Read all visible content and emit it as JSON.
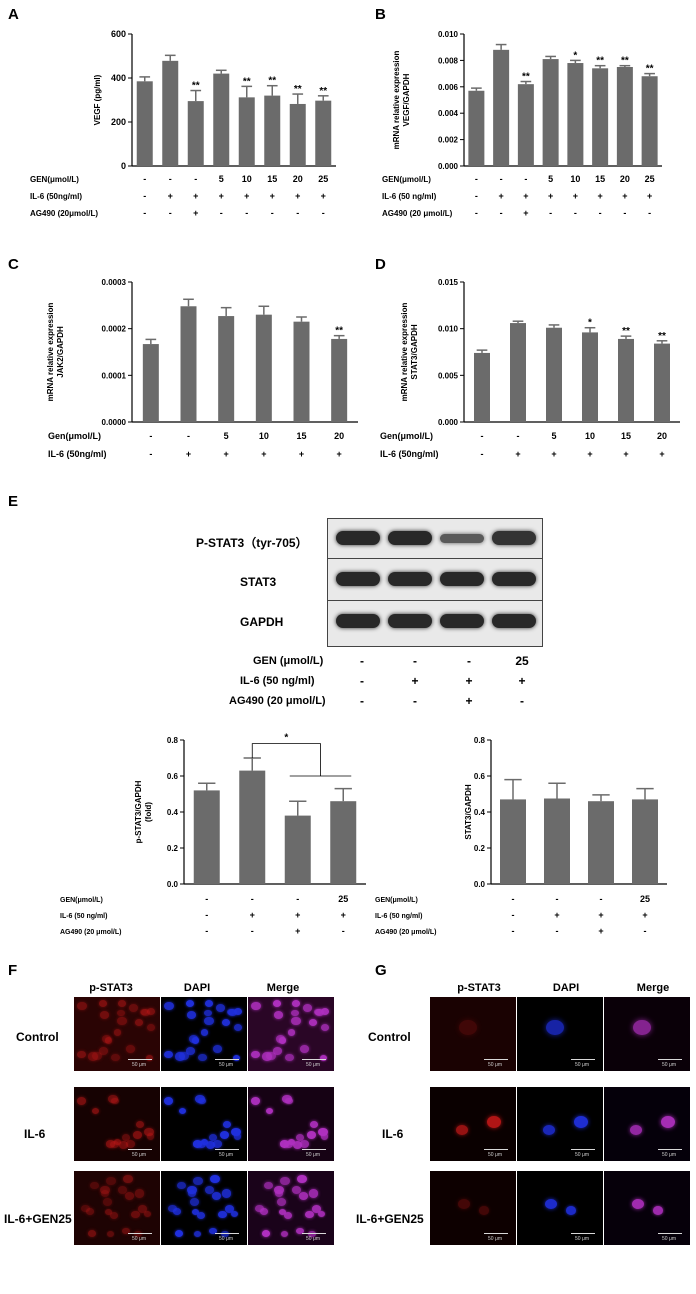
{
  "panel_letters": {
    "A": "A",
    "B": "B",
    "C": "C",
    "D": "D",
    "E": "E",
    "F": "F",
    "G": "G"
  },
  "chart_data": [
    {
      "id": "A",
      "type": "bar",
      "ylabel": "VEGF (pg/ml)",
      "ylim": [
        0,
        600
      ],
      "yticks": [
        0,
        200,
        400,
        600
      ],
      "values": [
        385,
        478,
        295,
        420,
        312,
        320,
        282,
        297
      ],
      "errors": [
        20,
        25,
        48,
        15,
        50,
        45,
        45,
        22
      ],
      "significance": [
        "",
        "",
        "**",
        "",
        "**",
        "**",
        "**",
        "**"
      ],
      "conditions": [
        {
          "label": "GEN(μmol/L)",
          "values": [
            "-",
            "-",
            "-",
            "5",
            "10",
            "15",
            "20",
            "25"
          ]
        },
        {
          "label": "IL-6 (50ng/ml)",
          "values": [
            "-",
            "+",
            "+",
            "+",
            "+",
            "+",
            "+",
            "+"
          ]
        },
        {
          "label": "AG490 (20μmol/L)",
          "values": [
            "-",
            "-",
            "+",
            "-",
            "-",
            "-",
            "-",
            "-"
          ]
        }
      ]
    },
    {
      "id": "B",
      "type": "bar",
      "ylabel": "mRNA relative expression\nVEGF/GAPDH",
      "ylim": [
        0,
        0.01
      ],
      "yticks": [
        0,
        0.002,
        0.004,
        0.006,
        0.008,
        0.01
      ],
      "ytick_labels": [
        "0.000",
        "0.002",
        "0.004",
        "0.006",
        "0.008",
        "0.010"
      ],
      "values": [
        0.0057,
        0.0088,
        0.0062,
        0.0081,
        0.0078,
        0.0074,
        0.0075,
        0.0068
      ],
      "errors": [
        0.0002,
        0.0004,
        0.0002,
        0.0002,
        0.0002,
        0.0002,
        0.0001,
        0.0002
      ],
      "significance": [
        "",
        "",
        "**",
        "",
        "*",
        "**",
        "**",
        "**"
      ],
      "conditions": [
        {
          "label": "GEN(μmol/L)",
          "values": [
            "-",
            "-",
            "-",
            "5",
            "10",
            "15",
            "20",
            "25"
          ]
        },
        {
          "label": "IL-6 (50 ng/ml)",
          "values": [
            "-",
            "+",
            "+",
            "+",
            "+",
            "+",
            "+",
            "+"
          ]
        },
        {
          "label": "AG490 (20 μmol/L)",
          "values": [
            "-",
            "-",
            "+",
            "-",
            "-",
            "-",
            "-",
            "-"
          ]
        }
      ]
    },
    {
      "id": "C",
      "type": "bar",
      "ylabel": "mRNA relative expression\nJAK2/GAPDH",
      "ylim": [
        0,
        0.0003
      ],
      "yticks": [
        0,
        0.0001,
        0.0002,
        0.0003
      ],
      "ytick_labels": [
        "0.0000",
        "0.0001",
        "0.0002",
        "0.0003"
      ],
      "values": [
        0.000167,
        0.000248,
        0.000227,
        0.00023,
        0.000215,
        0.000178
      ],
      "errors": [
        1e-05,
        1.5e-05,
        1.8e-05,
        1.8e-05,
        1e-05,
        7e-06
      ],
      "significance": [
        "",
        "",
        "",
        "",
        "",
        "**"
      ],
      "conditions": [
        {
          "label": "Gen(μmol/L)",
          "values": [
            "-",
            "-",
            "5",
            "10",
            "15",
            "20"
          ]
        },
        {
          "label": "IL-6 (50ng/ml)",
          "values": [
            "-",
            "+",
            "+",
            "+",
            "+",
            "+"
          ]
        }
      ]
    },
    {
      "id": "D",
      "type": "bar",
      "ylabel": "mRNA relative expression\nSTAT3/GAPDH",
      "ylim": [
        0,
        0.015
      ],
      "yticks": [
        0,
        0.005,
        0.01,
        0.015
      ],
      "ytick_labels": [
        "0.000",
        "0.005",
        "0.010",
        "0.015"
      ],
      "values": [
        0.0074,
        0.0106,
        0.0101,
        0.0096,
        0.0089,
        0.0084
      ],
      "errors": [
        0.0003,
        0.0002,
        0.0003,
        0.0005,
        0.0003,
        0.0003
      ],
      "significance": [
        "",
        "",
        "",
        "*",
        "**",
        "**"
      ],
      "conditions": [
        {
          "label": "Gen(μmol/L)",
          "values": [
            "-",
            "-",
            "5",
            "10",
            "15",
            "20"
          ]
        },
        {
          "label": "IL-6 (50ng/ml)",
          "values": [
            "-",
            "+",
            "+",
            "+",
            "+",
            "+"
          ]
        }
      ]
    },
    {
      "id": "E1",
      "type": "bar",
      "ylabel": "p-STAT3/GAPDH\n(fold)",
      "ylim": [
        0,
        0.8
      ],
      "yticks": [
        0,
        0.2,
        0.4,
        0.6,
        0.8
      ],
      "ytick_labels": [
        "0.0",
        "0.2",
        "0.4",
        "0.6",
        "0.8"
      ],
      "values": [
        0.52,
        0.63,
        0.38,
        0.46
      ],
      "errors": [
        0.04,
        0.07,
        0.08,
        0.07
      ],
      "significance": [
        "",
        "",
        "",
        ""
      ],
      "bracket_label": "*",
      "conditions": [
        {
          "label": "GEN(μmol/L)",
          "values": [
            "-",
            "-",
            "-",
            "25"
          ]
        },
        {
          "label": "IL-6 (50 ng/ml)",
          "values": [
            "-",
            "+",
            "+",
            "+"
          ]
        },
        {
          "label": "AG490 (20 μmol/L)",
          "values": [
            "-",
            "-",
            "+",
            "-"
          ]
        }
      ]
    },
    {
      "id": "E2",
      "type": "bar",
      "ylabel": "STAT3/GAPDH",
      "ylim": [
        0,
        0.8
      ],
      "yticks": [
        0,
        0.2,
        0.4,
        0.6,
        0.8
      ],
      "ytick_labels": [
        "0.0",
        "0.2",
        "0.4",
        "0.6",
        "0.8"
      ],
      "values": [
        0.47,
        0.475,
        0.46,
        0.47
      ],
      "errors": [
        0.11,
        0.085,
        0.035,
        0.06
      ],
      "significance": [
        "",
        "",
        "",
        ""
      ],
      "conditions": [
        {
          "label": "GEN(μmol/L)",
          "values": [
            "-",
            "-",
            "-",
            "25"
          ]
        },
        {
          "label": "IL-6 (50 ng/ml)",
          "values": [
            "-",
            "+",
            "+",
            "+"
          ]
        },
        {
          "label": "AG490 (20 μmol/L)",
          "values": [
            "-",
            "-",
            "+",
            "-"
          ]
        }
      ]
    }
  ],
  "blot": {
    "row_labels": [
      "P-STAT3（tyr-705）",
      "STAT3",
      "GAPDH"
    ],
    "band_intensity": [
      [
        1.0,
        1.0,
        0.55,
        0.9
      ],
      [
        1.0,
        1.0,
        1.0,
        1.0
      ],
      [
        1.0,
        1.0,
        1.0,
        1.0
      ]
    ],
    "conditions": [
      {
        "label": "GEN (μmol/L)",
        "values": [
          "-",
          "-",
          "-",
          "25"
        ]
      },
      {
        "label": "IL-6 (50 ng/ml)",
        "values": [
          "-",
          "+",
          "+",
          "+"
        ]
      },
      {
        "label": "AG490 (20 μmol/L)",
        "values": [
          "-",
          "-",
          "+",
          "-"
        ]
      }
    ]
  },
  "micro_F": {
    "headers": [
      "p-STAT3",
      "DAPI",
      "Merge"
    ],
    "rows": [
      "Control",
      "IL-6",
      "IL-6+GEN25"
    ],
    "scale": "50 μm"
  },
  "micro_G": {
    "headers": [
      "p-STAT3",
      "DAPI",
      "Merge"
    ],
    "rows": [
      "Control",
      "IL-6",
      "IL-6+GEN25"
    ],
    "scale": "50 μm"
  },
  "colors": {
    "bar": "#6b6b6b",
    "red_channel": "#c01818",
    "blue_channel": "#2030e0",
    "merge": "#b030c0"
  }
}
